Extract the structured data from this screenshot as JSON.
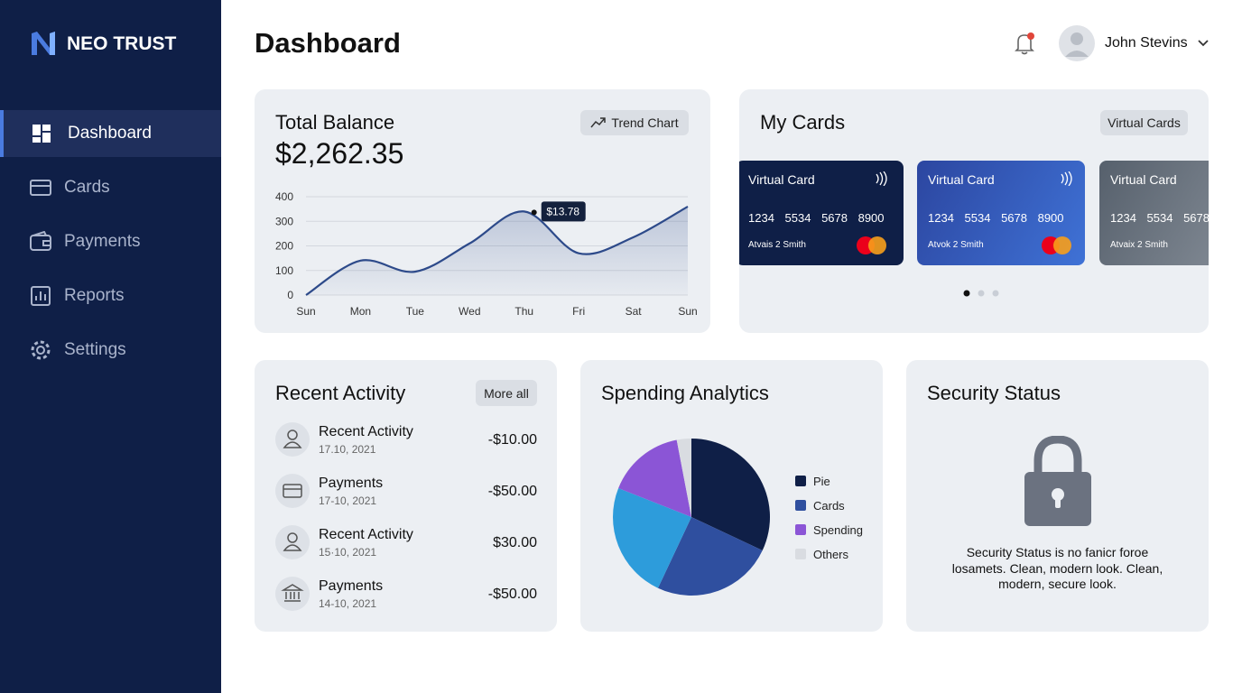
{
  "brand": "NEO TRUST",
  "nav": [
    "Dashboard",
    "Cards",
    "Payments",
    "Reports",
    "Settings"
  ],
  "header": {
    "title": "Dashboard",
    "user": "John Stevins"
  },
  "balance": {
    "title": "Total Balance",
    "amount": "$2,262.35",
    "button": "Trend Chart"
  },
  "my_cards": {
    "title": "My Cards",
    "button": "Virtual Cards",
    "cards": [
      {
        "label": "Virtual Card",
        "number": "1234 5534 5678 8900",
        "holder": "Atvais 2 Smith"
      },
      {
        "label": "Virtual Card",
        "number": "1234 5534 5678 8900",
        "holder": "Atvok 2 Smith"
      },
      {
        "label": "Virtual Card",
        "number": "1234 5534 5678",
        "holder": "Atvaix 2 Smith"
      }
    ]
  },
  "activity": {
    "title": "Recent Activity",
    "button": "More all",
    "items": [
      {
        "title": "Recent Activity",
        "date": "17.10, 2021",
        "amount": "-$10.00"
      },
      {
        "title": "Payments",
        "date": "17-10, 2021",
        "amount": "-$50.00"
      },
      {
        "title": "Recent Activity",
        "date": "15·10, 2021",
        "amount": "$30.00"
      },
      {
        "title": "Payments",
        "date": "14-10, 2021",
        "amount": "-$50.00"
      }
    ]
  },
  "security": {
    "title": "Security Status",
    "text": "Security Status is no fanicr foroe losamets. Clean, modern look. Clean, modern, secure look."
  },
  "chart_data": [
    {
      "type": "line",
      "categories": [
        "Sun",
        "Mon",
        "Tue",
        "Wed",
        "Thu",
        "Fri",
        "Sat",
        "Sun"
      ],
      "values": [
        0,
        140,
        95,
        210,
        340,
        170,
        235,
        360
      ],
      "color": "#2d4a8a",
      "ylim": [
        0,
        400
      ],
      "yticks": [
        0,
        100,
        200,
        300,
        400
      ],
      "grid": true,
      "annotation": "$13.78"
    },
    {
      "type": "pie",
      "title": "Spending Analytics",
      "categories": [
        "Pie",
        "Cards",
        null,
        "Spending",
        "Others"
      ],
      "values": [
        32,
        25,
        24,
        16,
        3
      ],
      "colors": [
        "#0f1f47",
        "#2f4f9f",
        "#2d9cdb",
        "#8b55d6",
        "#d9dce1"
      ]
    }
  ]
}
